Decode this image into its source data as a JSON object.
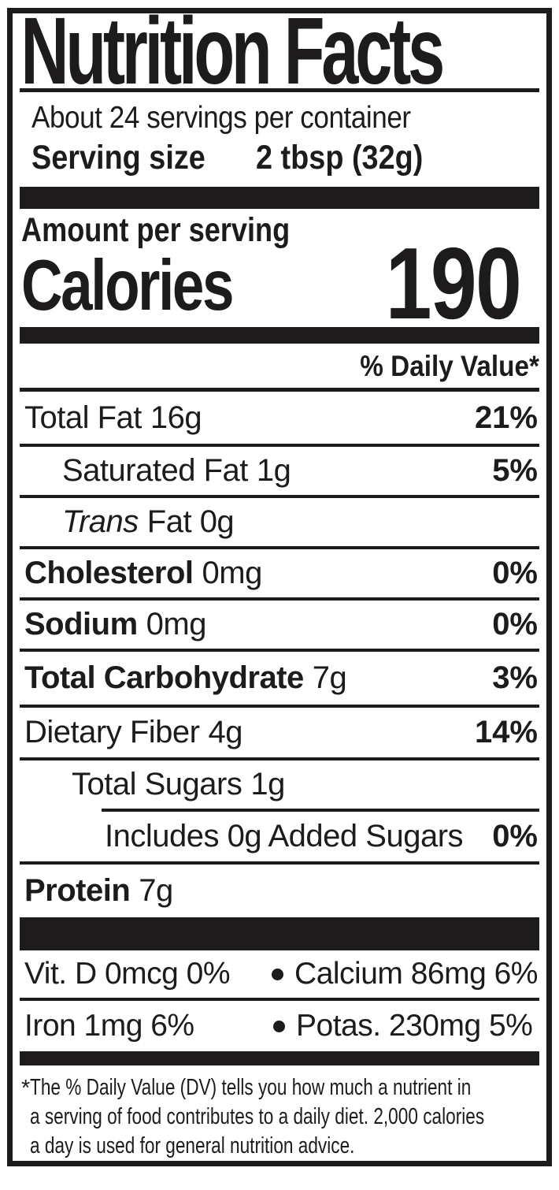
{
  "label": {
    "title": "Nutrition Facts",
    "servings_per_container": "About 24 servings per container",
    "serving_size_label": "Serving size",
    "serving_size_value": "2 tbsp (32g)",
    "amount_per_serving": "Amount per serving",
    "calories_label": "Calories",
    "calories_value": "190",
    "daily_value_header": "% Daily Value*",
    "rows": {
      "total_fat": {
        "name": "Total Fat",
        "amount": "16g",
        "dv": "21%"
      },
      "saturated_fat": {
        "name": "Saturated Fat",
        "amount": "1g",
        "dv": "5%"
      },
      "trans_fat": {
        "name": "Trans",
        "amount": "Fat 0g"
      },
      "cholesterol": {
        "name": "Cholesterol",
        "amount": "0mg",
        "dv": "0%"
      },
      "sodium": {
        "name": "Sodium",
        "amount": "0mg",
        "dv": "0%"
      },
      "total_carbohydrate": {
        "name": "Total Carbohydrate",
        "amount": "7g",
        "dv": "3%"
      },
      "dietary_fiber": {
        "name": "Dietary Fiber",
        "amount": "4g",
        "dv": "14%"
      },
      "total_sugars": {
        "name": "Total Sugars",
        "amount": "1g"
      },
      "added_sugars": {
        "name": "Includes 0g Added Sugars",
        "dv": "0%"
      },
      "protein": {
        "name": "Protein",
        "amount": "7g"
      }
    },
    "micronutrients": {
      "vitamin_d": "Vit. D 0mcg 0%",
      "calcium": "Calcium 86mg 6%",
      "iron": "Iron 1mg 6%",
      "potassium": "Potas. 230mg 5%"
    },
    "footnote_marker": "*",
    "footnote_lines": [
      "The % Daily Value (DV) tells you how much a nutrient in",
      "a serving of food contributes to a daily diet. 2,000 calories",
      "a day is used for general nutrition advice."
    ]
  },
  "icons": {
    "bullet": "solid-dot"
  },
  "colors": {
    "ink": "#1d1b1b",
    "background": "#ffffff"
  }
}
